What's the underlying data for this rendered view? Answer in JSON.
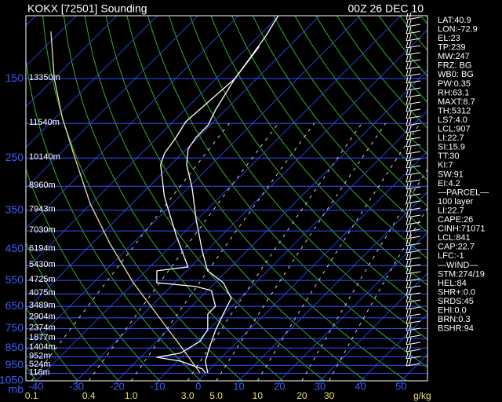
{
  "chart_data": {
    "type": "skewt",
    "title": "KOKX [72501] Sounding",
    "time": "00Z 26 DEC 10",
    "y_unit": "mb",
    "w_unit": "g/kg",
    "log_y": true,
    "ylim": [
      1050,
      100
    ],
    "xlim": [
      -42.5,
      56.5
    ],
    "yticks": [
      150,
      250,
      350,
      450,
      550,
      650,
      750,
      850,
      950,
      1050
    ],
    "xticks": [
      -40,
      -30,
      -20,
      -10,
      0,
      10,
      20,
      30,
      40,
      50
    ],
    "isobars": [
      100,
      150,
      200,
      250,
      300,
      350,
      400,
      450,
      500,
      550,
      600,
      650,
      700,
      750,
      800,
      850,
      900,
      950,
      1000,
      1050
    ],
    "mixing_ratio_ticks": [
      0.1,
      0.4,
      {
        "value": 1,
        "label": "1.0"
      },
      {
        "value": 3,
        "label": "3.0"
      },
      {
        "value": 5,
        "label": "5.0"
      },
      10,
      20,
      30
    ],
    "heights": [
      {
        "pressure": 150,
        "label": "13350m"
      },
      {
        "pressure": 200,
        "label": "11540m"
      },
      {
        "pressure": 250,
        "label": "10140m"
      },
      {
        "pressure": 300,
        "label": "8960m"
      },
      {
        "pressure": 350,
        "label": "7943m"
      },
      {
        "pressure": 400,
        "label": "7030m"
      },
      {
        "pressure": 450,
        "label": "6194m"
      },
      {
        "pressure": 500,
        "label": "5430m"
      },
      {
        "pressure": 550,
        "label": "4725m"
      },
      {
        "pressure": 600,
        "label": "4075m"
      },
      {
        "pressure": 650,
        "label": "3489m"
      },
      {
        "pressure": 700,
        "label": "2904m"
      },
      {
        "pressure": 750,
        "label": "2374m"
      },
      {
        "pressure": 800,
        "label": "1877m"
      },
      {
        "pressure": 850,
        "label": "1404m"
      },
      {
        "pressure": 900,
        "label": "952m"
      },
      {
        "pressure": 950,
        "label": "524m"
      },
      {
        "pressure": 1000,
        "label": "118m"
      }
    ],
    "series": [
      {
        "color": "#ffffff",
        "pressure": [
          100,
          113.5,
          132,
          150,
          183,
          203,
          219,
          236,
          261,
          304,
          372,
          456,
          517,
          558,
          617,
          683,
          755,
          836,
          925,
          998
        ],
        "values": [
          -70.2,
          -68.3,
          -66.7,
          -65.4,
          -62.5,
          -60.5,
          -60.5,
          -59.6,
          -56.1,
          -48.9,
          -40.2,
          -30.9,
          -24.8,
          -18.0,
          -12.2,
          -10.3,
          -8.3,
          -5.8,
          -3.1,
          0.4
        ]
      },
      {
        "color": "#ffffff",
        "pressure": [
          122,
          150,
          198,
          219,
          242,
          261,
          320,
          412,
          504,
          517,
          558,
          572,
          587,
          650,
          683,
          755,
          815,
          879,
          902,
          925,
          973,
          998
        ],
        "values": [
          -67.3,
          -65.4,
          -66.9,
          -65.4,
          -64.4,
          -62.5,
          -53.8,
          -41.2,
          -30.6,
          -37.3,
          -34.4,
          -23.8,
          -19.0,
          -14.1,
          -14.1,
          -10.3,
          -9.3,
          -11.2,
          -16.1,
          -9.3,
          -1.9,
          -0.2
        ]
      },
      {
        "color": "#e8e0a0",
        "pressure": [
          110.6,
          150,
          193,
          248,
          336,
          433,
          558,
          683,
          836,
          998
        ],
        "values": [
          -122.4,
          -109.9,
          -98.3,
          -85.7,
          -70.2,
          -55.7,
          -40.2,
          -26.7,
          -13.2,
          -1.5
        ]
      }
    ],
    "stats": [
      "LAT:40.9",
      "LON:-72.9",
      "EL:23",
      "TP:239",
      "MW:247",
      "FRZ: BG",
      "WB0: BG",
      "PW:0.35",
      "RH:63.1",
      "MAXT:8.7",
      "TH:5312",
      "LS7:4.0",
      "LCL:907",
      "LI:22.7",
      "SI:15.9",
      "TT:30",
      "KI:7",
      "SW:91",
      "EI:4.2",
      "—PARCEL—",
      "100 layer",
      "LI:22.7",
      "CAPE:26",
      "CINH:71071",
      "LCL:841",
      "CAP:22.7",
      "LFC:-1",
      "—WIND—",
      "STM:274/19",
      "HEL:84",
      "SHR+:0.0",
      "SRDS:45",
      "EHI:0.0",
      "BRN:0.3",
      "BSHR:94"
    ]
  }
}
